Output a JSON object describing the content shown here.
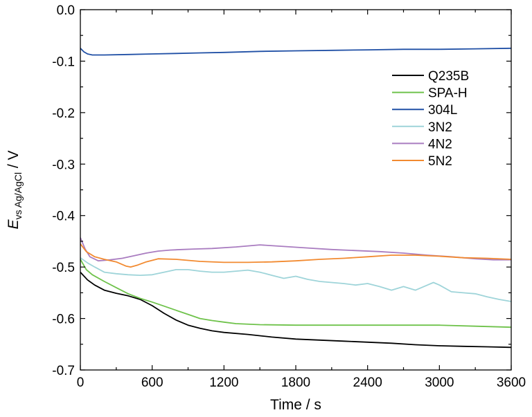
{
  "chart_data": {
    "type": "line",
    "title": "",
    "xlabel": "Time / s",
    "ylabel_main": "E",
    "ylabel_sub": "vs Ag/AgCl",
    "ylabel_unit": " / V",
    "xlim": [
      0,
      3600
    ],
    "ylim": [
      -0.7,
      0.0
    ],
    "xticks": [
      0,
      600,
      1200,
      1800,
      2400,
      3000,
      3600
    ],
    "xtick_labels": [
      "0",
      "600",
      "1200",
      "1800",
      "2400",
      "3000",
      "3600"
    ],
    "yticks": [
      0.0,
      -0.1,
      -0.2,
      -0.3,
      -0.4,
      -0.5,
      -0.6,
      -0.7
    ],
    "ytick_labels": [
      "0.0",
      "-0.1",
      "-0.2",
      "-0.3",
      "-0.4",
      "-0.5",
      "-0.6",
      "-0.7"
    ],
    "grid": false,
    "legend_position": "right",
    "series": [
      {
        "name": "Q235B",
        "color": "#000000",
        "points": [
          [
            0,
            -0.51
          ],
          [
            60,
            -0.525
          ],
          [
            120,
            -0.535
          ],
          [
            200,
            -0.545
          ],
          [
            300,
            -0.551
          ],
          [
            400,
            -0.556
          ],
          [
            500,
            -0.563
          ],
          [
            600,
            -0.575
          ],
          [
            700,
            -0.59
          ],
          [
            800,
            -0.603
          ],
          [
            900,
            -0.613
          ],
          [
            1000,
            -0.619
          ],
          [
            1100,
            -0.624
          ],
          [
            1200,
            -0.627
          ],
          [
            1400,
            -0.631
          ],
          [
            1600,
            -0.636
          ],
          [
            1800,
            -0.64
          ],
          [
            2000,
            -0.642
          ],
          [
            2200,
            -0.644
          ],
          [
            2400,
            -0.646
          ],
          [
            2600,
            -0.648
          ],
          [
            2800,
            -0.651
          ],
          [
            3000,
            -0.653
          ],
          [
            3200,
            -0.654
          ],
          [
            3400,
            -0.655
          ],
          [
            3600,
            -0.656
          ]
        ]
      },
      {
        "name": "SPA-H",
        "color": "#6ec24a",
        "points": [
          [
            0,
            -0.485
          ],
          [
            50,
            -0.505
          ],
          [
            100,
            -0.515
          ],
          [
            200,
            -0.528
          ],
          [
            300,
            -0.54
          ],
          [
            400,
            -0.552
          ],
          [
            500,
            -0.561
          ],
          [
            600,
            -0.568
          ],
          [
            700,
            -0.576
          ],
          [
            800,
            -0.584
          ],
          [
            900,
            -0.592
          ],
          [
            1000,
            -0.6
          ],
          [
            1100,
            -0.604
          ],
          [
            1200,
            -0.607
          ],
          [
            1300,
            -0.61
          ],
          [
            1500,
            -0.612
          ],
          [
            1800,
            -0.613
          ],
          [
            2100,
            -0.613
          ],
          [
            2400,
            -0.613
          ],
          [
            2700,
            -0.613
          ],
          [
            3000,
            -0.613
          ],
          [
            3300,
            -0.615
          ],
          [
            3600,
            -0.617
          ]
        ]
      },
      {
        "name": "304L",
        "color": "#1f4fa5",
        "points": [
          [
            0,
            -0.075
          ],
          [
            30,
            -0.082
          ],
          [
            60,
            -0.086
          ],
          [
            100,
            -0.088
          ],
          [
            200,
            -0.088
          ],
          [
            400,
            -0.087
          ],
          [
            600,
            -0.086
          ],
          [
            800,
            -0.085
          ],
          [
            1000,
            -0.084
          ],
          [
            1200,
            -0.083
          ],
          [
            1500,
            -0.081
          ],
          [
            1800,
            -0.08
          ],
          [
            2100,
            -0.079
          ],
          [
            2400,
            -0.078
          ],
          [
            2700,
            -0.077
          ],
          [
            3000,
            -0.077
          ],
          [
            3300,
            -0.076
          ],
          [
            3600,
            -0.075
          ]
        ]
      },
      {
        "name": "3N2",
        "color": "#9ed4d9",
        "points": [
          [
            0,
            -0.482
          ],
          [
            60,
            -0.492
          ],
          [
            120,
            -0.5
          ],
          [
            200,
            -0.51
          ],
          [
            300,
            -0.513
          ],
          [
            400,
            -0.515
          ],
          [
            500,
            -0.516
          ],
          [
            600,
            -0.515
          ],
          [
            700,
            -0.51
          ],
          [
            800,
            -0.505
          ],
          [
            900,
            -0.505
          ],
          [
            1000,
            -0.508
          ],
          [
            1100,
            -0.51
          ],
          [
            1200,
            -0.51
          ],
          [
            1300,
            -0.508
          ],
          [
            1400,
            -0.506
          ],
          [
            1500,
            -0.51
          ],
          [
            1600,
            -0.516
          ],
          [
            1700,
            -0.522
          ],
          [
            1800,
            -0.518
          ],
          [
            1900,
            -0.524
          ],
          [
            2000,
            -0.528
          ],
          [
            2100,
            -0.53
          ],
          [
            2200,
            -0.532
          ],
          [
            2300,
            -0.535
          ],
          [
            2400,
            -0.532
          ],
          [
            2500,
            -0.538
          ],
          [
            2600,
            -0.545
          ],
          [
            2700,
            -0.538
          ],
          [
            2800,
            -0.545
          ],
          [
            2900,
            -0.535
          ],
          [
            2950,
            -0.53
          ],
          [
            3000,
            -0.535
          ],
          [
            3100,
            -0.548
          ],
          [
            3200,
            -0.55
          ],
          [
            3300,
            -0.552
          ],
          [
            3400,
            -0.558
          ],
          [
            3500,
            -0.563
          ],
          [
            3600,
            -0.567
          ]
        ]
      },
      {
        "name": "4N2",
        "color": "#a97cc0",
        "points": [
          [
            0,
            -0.443
          ],
          [
            40,
            -0.465
          ],
          [
            80,
            -0.48
          ],
          [
            150,
            -0.488
          ],
          [
            250,
            -0.486
          ],
          [
            350,
            -0.483
          ],
          [
            450,
            -0.478
          ],
          [
            550,
            -0.473
          ],
          [
            650,
            -0.469
          ],
          [
            750,
            -0.467
          ],
          [
            850,
            -0.466
          ],
          [
            950,
            -0.465
          ],
          [
            1100,
            -0.464
          ],
          [
            1300,
            -0.461
          ],
          [
            1500,
            -0.457
          ],
          [
            1700,
            -0.46
          ],
          [
            1900,
            -0.463
          ],
          [
            2100,
            -0.466
          ],
          [
            2300,
            -0.468
          ],
          [
            2500,
            -0.47
          ],
          [
            2700,
            -0.473
          ],
          [
            2900,
            -0.477
          ],
          [
            3100,
            -0.48
          ],
          [
            3300,
            -0.484
          ],
          [
            3450,
            -0.486
          ],
          [
            3600,
            -0.486
          ]
        ]
      },
      {
        "name": "5N2",
        "color": "#f28a30",
        "points": [
          [
            0,
            -0.455
          ],
          [
            50,
            -0.47
          ],
          [
            120,
            -0.48
          ],
          [
            200,
            -0.485
          ],
          [
            300,
            -0.49
          ],
          [
            380,
            -0.498
          ],
          [
            420,
            -0.5
          ],
          [
            480,
            -0.496
          ],
          [
            550,
            -0.49
          ],
          [
            650,
            -0.484
          ],
          [
            800,
            -0.485
          ],
          [
            1000,
            -0.489
          ],
          [
            1200,
            -0.491
          ],
          [
            1400,
            -0.491
          ],
          [
            1600,
            -0.49
          ],
          [
            1800,
            -0.488
          ],
          [
            2000,
            -0.485
          ],
          [
            2200,
            -0.483
          ],
          [
            2400,
            -0.48
          ],
          [
            2600,
            -0.477
          ],
          [
            2800,
            -0.477
          ],
          [
            3000,
            -0.479
          ],
          [
            3200,
            -0.482
          ],
          [
            3400,
            -0.483
          ],
          [
            3600,
            -0.485
          ]
        ]
      }
    ]
  }
}
